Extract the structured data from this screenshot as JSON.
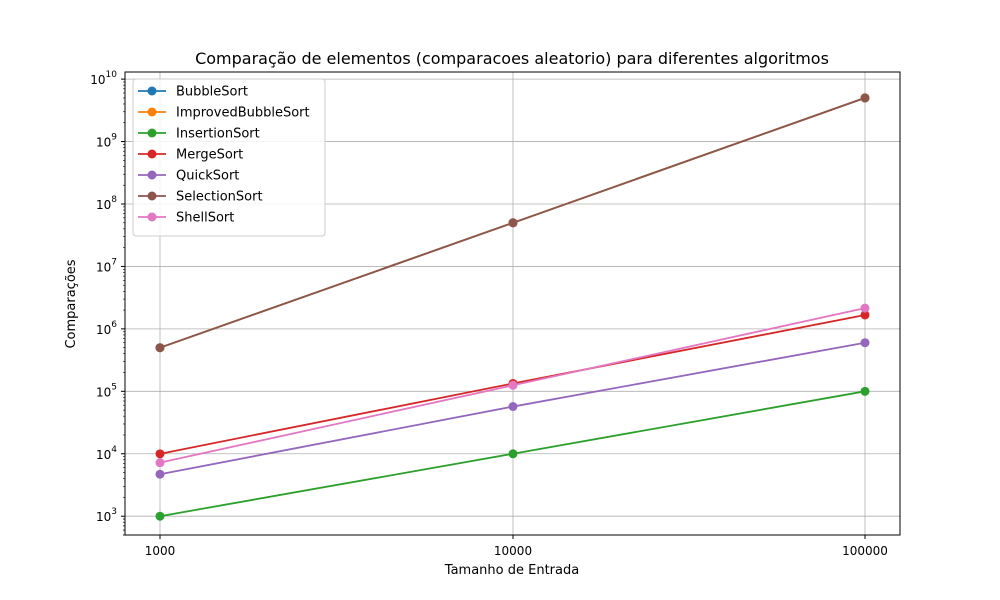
{
  "chart_data": {
    "type": "line",
    "title": "Comparação de elementos (comparacoes aleatorio) para diferentes algoritmos",
    "xlabel": "Tamanho de Entrada",
    "ylabel": "Comparações",
    "x": [
      1000,
      10000,
      100000
    ],
    "x_tick_labels": [
      "1000",
      "10000",
      "100000"
    ],
    "y_scale": "log",
    "y_ticks": [
      {
        "value": 1000,
        "base": "10",
        "exp": "3"
      },
      {
        "value": 10000,
        "base": "10",
        "exp": "4"
      },
      {
        "value": 100000,
        "base": "10",
        "exp": "5"
      },
      {
        "value": 1000000,
        "base": "10",
        "exp": "6"
      },
      {
        "value": 10000000,
        "base": "10",
        "exp": "7"
      },
      {
        "value": 100000000,
        "base": "10",
        "exp": "8"
      },
      {
        "value": 1000000000,
        "base": "10",
        "exp": "9"
      },
      {
        "value": 10000000000,
        "base": "10",
        "exp": "10"
      }
    ],
    "grid": true,
    "legend_position": "top-left",
    "series": [
      {
        "name": "BubbleSort",
        "color": "#1f77b4",
        "values": [
          499500,
          49995000,
          4999950000
        ]
      },
      {
        "name": "ImprovedBubbleSort",
        "color": "#ff7f0e",
        "values": [
          499500,
          49995000,
          4999950000
        ]
      },
      {
        "name": "InsertionSort",
        "color": "#2ca02c",
        "values": [
          999,
          9999,
          99999
        ]
      },
      {
        "name": "MergeSort",
        "color": "#d62728",
        "values": [
          9976,
          133616,
          1668928
        ]
      },
      {
        "name": "QuickSort",
        "color": "#9467bd",
        "values": [
          4700,
          57000,
          600000
        ]
      },
      {
        "name": "SelectionSort",
        "color": "#8c564b",
        "values": [
          499500,
          49995000,
          4999950000
        ]
      },
      {
        "name": "ShellSort",
        "color": "#e377c2",
        "values": [
          7200,
          125000,
          2150000
        ]
      }
    ]
  }
}
